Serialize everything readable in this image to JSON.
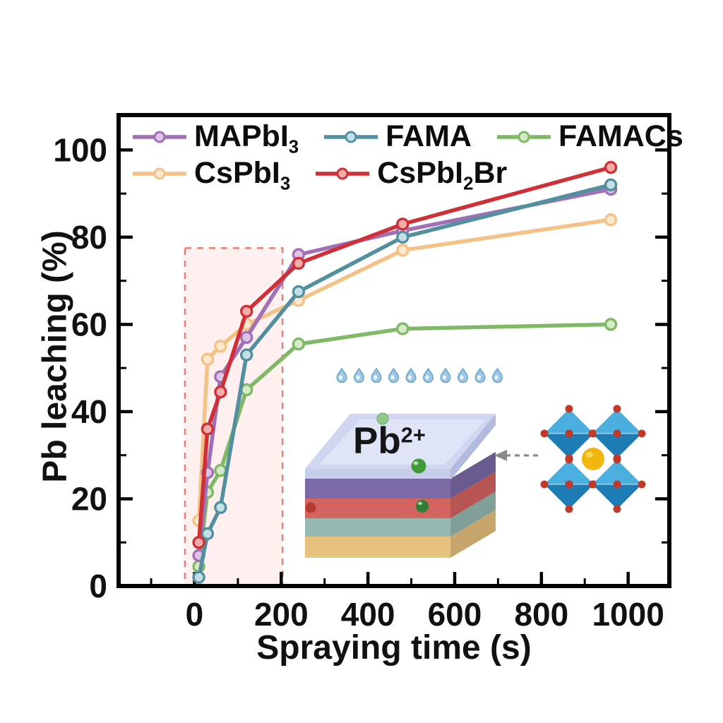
{
  "chart_data": {
    "type": "line",
    "title": "",
    "xlabel": "Spraying time (s)",
    "ylabel": "Pb leaching (%)",
    "x": [
      10,
      30,
      60,
      120,
      240,
      480,
      960
    ],
    "series": [
      {
        "name": "MAPbI3",
        "label_pre": "MAPbI",
        "label_sub": "3",
        "label_post": "",
        "color": "#a16fb5",
        "marker_fill": "#ddc3e5",
        "values": [
          7,
          26,
          48,
          57,
          76,
          81.5,
          91
        ]
      },
      {
        "name": "FAMA",
        "label_pre": "FAMA",
        "label_sub": "",
        "label_post": "",
        "color": "#53909f",
        "marker_fill": "#c5dfe6",
        "values": [
          2,
          12,
          18,
          53,
          67.5,
          80,
          92
        ]
      },
      {
        "name": "FAMACs",
        "label_pre": "FAMACs",
        "label_sub": "",
        "label_post": "",
        "color": "#7fb965",
        "marker_fill": "#d5eac8",
        "values": [
          4.5,
          21.5,
          26.5,
          45,
          55.5,
          59,
          60
        ]
      },
      {
        "name": "CsPbI3",
        "label_pre": "CsPbI",
        "label_sub": "3",
        "label_post": "",
        "color": "#f4c186",
        "marker_fill": "#fbe8cd",
        "values": [
          15,
          52,
          55,
          60,
          65.5,
          77,
          84
        ]
      },
      {
        "name": "CsPbI2Br",
        "label_pre": "CsPbI",
        "label_sub": "2",
        "label_post": "Br",
        "color": "#cf2f36",
        "marker_fill": "#f2adaa",
        "values": [
          10,
          36,
          44.5,
          63,
          74,
          83,
          96
        ]
      }
    ],
    "xlim": [
      -175,
      1095
    ],
    "ylim": [
      0,
      108
    ],
    "xticks": [
      0,
      200,
      400,
      600,
      800,
      1000
    ],
    "yticks": [
      0,
      20,
      40,
      60,
      80,
      100
    ],
    "x_minor_step": 100,
    "y_minor_step": 10,
    "grid": false,
    "legend_position": "top-inside",
    "legend_rows": [
      [
        "MAPbI3",
        "FAMA",
        "FAMACs"
      ],
      [
        "CsPbI3",
        "CsPbI2Br"
      ]
    ],
    "highlight_region": {
      "x0": -22,
      "x1": 203,
      "y0": 0,
      "y1": 77.5,
      "fill": "#fdf0ef",
      "border": "#e87f7c"
    }
  },
  "inset": {
    "pb_ion_label": {
      "pre": "Pb",
      "sup": "2+"
    },
    "droplets": {
      "count": 10,
      "color": "#9cc6e2",
      "outline": "#5d9fca"
    },
    "stack": {
      "sand": "#e7c27e",
      "teal": "#96bab1",
      "red": "#d4645f",
      "purple": "#7c6aa6",
      "water_front": "#c3c9e8",
      "water_side": "#aab3d9",
      "water_top": "#ccd3ee",
      "water_sheet": "#e2e8f8",
      "side_shade": "rgba(0,0,0,0.14)"
    },
    "ions": {
      "green": "#3f9b3a",
      "green_dark": "#2f7e33",
      "green_light": "#8fca8a",
      "red_dot": "#b23a31"
    },
    "crystal": {
      "face_light": "#4aaede",
      "face_dark": "#1c7cb3",
      "vertex": "#c0392b",
      "center": "#f0b80e",
      "center_highlight": "#fada5e"
    },
    "arrow_color": "#8a8a8a"
  },
  "axis_color": "#000000"
}
